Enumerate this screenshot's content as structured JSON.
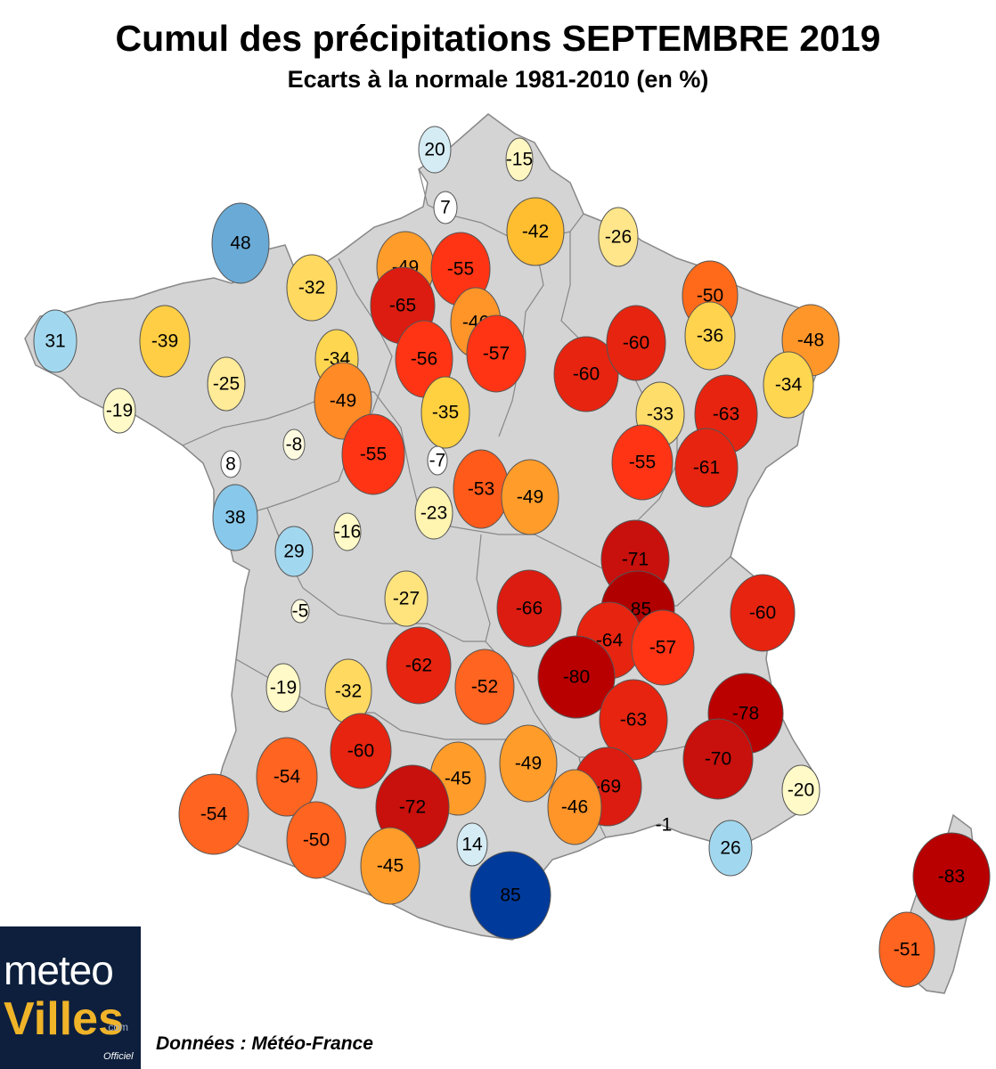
{
  "title": "Cumul des précipitations SEPTEMBRE 2019",
  "subtitle": "Ecarts à la normale 1981-2010 (en %)",
  "source": "Données : Météo-France",
  "logo": {
    "line1": "meteo",
    "line2": "Villes",
    "suffix": ".com",
    "tag": "Officiel"
  },
  "colors": {
    "land": "#d4d4d4",
    "border": "#888888"
  },
  "stations": [
    {
      "value": 20,
      "color": "#d5ecf5"
    },
    {
      "value": -15,
      "color": "#fff7c2"
    },
    {
      "value": 7,
      "color": "#ffffff"
    },
    {
      "value": -42,
      "color": "#ffbe30"
    },
    {
      "value": -26,
      "color": "#ffe68a"
    },
    {
      "value": 48,
      "color": "#6aaad6"
    },
    {
      "value": -32,
      "color": "#ffd960"
    },
    {
      "value": -49,
      "color": "#ff9c2a"
    },
    {
      "value": -55,
      "color": "#ff3414"
    },
    {
      "value": -65,
      "color": "#dc1c10"
    },
    {
      "value": -46,
      "color": "#ff9429"
    },
    {
      "value": -56,
      "color": "#ff3414"
    },
    {
      "value": -57,
      "color": "#ff3414"
    },
    {
      "value": -60,
      "color": "#e62410"
    },
    {
      "value": -60,
      "color": "#e62410"
    },
    {
      "value": -50,
      "color": "#ff6a1a"
    },
    {
      "value": -36,
      "color": "#ffd34e"
    },
    {
      "value": -48,
      "color": "#ff962a"
    },
    {
      "value": 31,
      "color": "#a2d8ef"
    },
    {
      "value": -39,
      "color": "#ffce44"
    },
    {
      "value": -25,
      "color": "#ffeb98"
    },
    {
      "value": -34,
      "color": "#ffd650"
    },
    {
      "value": -19,
      "color": "#fffac8"
    },
    {
      "value": -49,
      "color": "#ff8a26"
    },
    {
      "value": -35,
      "color": "#ffd040"
    },
    {
      "value": -33,
      "color": "#ffdd6a"
    },
    {
      "value": -63,
      "color": "#e62410"
    },
    {
      "value": -34,
      "color": "#ffd650"
    },
    {
      "value": -8,
      "color": "#fffbe0"
    },
    {
      "value": 8,
      "color": "#ffffff"
    },
    {
      "value": -55,
      "color": "#ff3414"
    },
    {
      "value": -7,
      "color": "#ffffff"
    },
    {
      "value": -53,
      "color": "#ff5a1a"
    },
    {
      "value": -49,
      "color": "#ff9c2a"
    },
    {
      "value": -55,
      "color": "#ff3414"
    },
    {
      "value": -61,
      "color": "#e62410"
    },
    {
      "value": 38,
      "color": "#88c8ea"
    },
    {
      "value": -23,
      "color": "#fff4b0"
    },
    {
      "value": -16,
      "color": "#fffac8"
    },
    {
      "value": 29,
      "color": "#a2d8ef"
    },
    {
      "value": -71,
      "color": "#c8100c"
    },
    {
      "value": -85,
      "color": "#b00000"
    },
    {
      "value": -66,
      "color": "#dc1c10"
    },
    {
      "value": -60,
      "color": "#e62410"
    },
    {
      "value": -27,
      "color": "#ffe47e"
    },
    {
      "value": -5,
      "color": "#fffbe0"
    },
    {
      "value": -64,
      "color": "#e62410"
    },
    {
      "value": -57,
      "color": "#ff3414"
    },
    {
      "value": -80,
      "color": "#b80000"
    },
    {
      "value": -62,
      "color": "#e62410"
    },
    {
      "value": -52,
      "color": "#ff6420"
    },
    {
      "value": -78,
      "color": "#bb0000"
    },
    {
      "value": -19,
      "color": "#fffac8"
    },
    {
      "value": -32,
      "color": "#ffd960"
    },
    {
      "value": -63,
      "color": "#e62410"
    },
    {
      "value": -70,
      "color": "#c8100c"
    },
    {
      "value": -60,
      "color": "#e62410"
    },
    {
      "value": -54,
      "color": "#ff6420"
    },
    {
      "value": -49,
      "color": "#ff9c2a"
    },
    {
      "value": -45,
      "color": "#ff9c2a"
    },
    {
      "value": -69,
      "color": "#dc1c10"
    },
    {
      "value": -72,
      "color": "#c8100c"
    },
    {
      "value": -54,
      "color": "#ff6420"
    },
    {
      "value": -46,
      "color": "#ff9429"
    },
    {
      "value": -20,
      "color": "#fffac8"
    },
    {
      "value": -50,
      "color": "#ff6420"
    },
    {
      "value": -1,
      "color": "none"
    },
    {
      "value": 14,
      "color": "#d5ecf5"
    },
    {
      "value": 26,
      "color": "#a2d8ef"
    },
    {
      "value": -45,
      "color": "#ff9c2a"
    },
    {
      "value": 85,
      "color": "#003a9b"
    },
    {
      "value": -83,
      "color": "#b80000"
    },
    {
      "value": -51,
      "color": "#ff6420"
    }
  ]
}
